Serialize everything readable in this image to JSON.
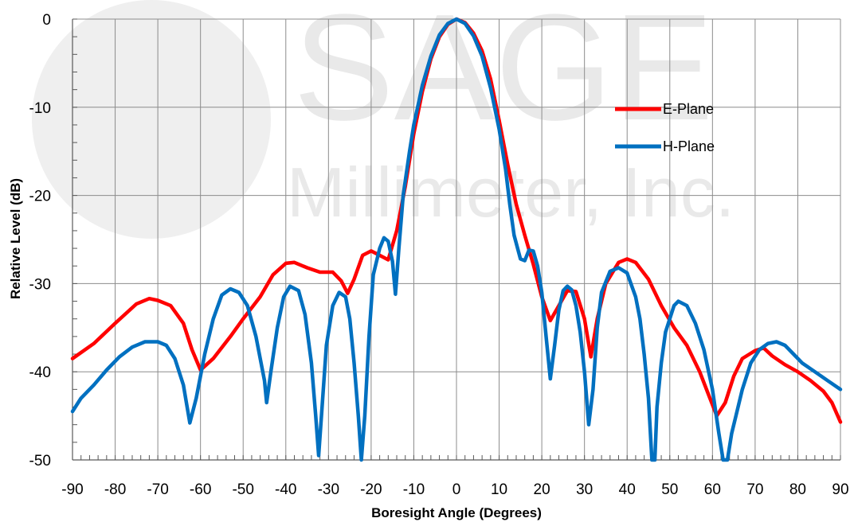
{
  "chart_data": {
    "type": "line",
    "xlabel": "Boresight Angle (Degrees)",
    "ylabel": "Relative Level (dB)",
    "xlim": [
      -90,
      90
    ],
    "ylim": [
      -50,
      0
    ],
    "x_ticks": [
      "-90",
      "-80",
      "-70",
      "-60",
      "-50",
      "-40",
      "-30",
      "-20",
      "-10",
      "0",
      "10",
      "20",
      "30",
      "40",
      "50",
      "60",
      "70",
      "80",
      "90"
    ],
    "y_ticks": [
      "0",
      "-10",
      "-20",
      "-30",
      "-40",
      "-50"
    ],
    "grid": true,
    "legend_position": "top-right",
    "watermark": {
      "line1": "SAGE",
      "line2": "Millimeter, Inc."
    },
    "series": [
      {
        "name": "E-Plane",
        "color": "#ff0000",
        "points": [
          [
            -90,
            -38.5
          ],
          [
            -85,
            -36.8
          ],
          [
            -80,
            -34.5
          ],
          [
            -75,
            -32.3
          ],
          [
            -72,
            -31.7
          ],
          [
            -70,
            -31.9
          ],
          [
            -67,
            -32.5
          ],
          [
            -64,
            -34.5
          ],
          [
            -62,
            -37.5
          ],
          [
            -60,
            -39.8
          ],
          [
            -57,
            -38.5
          ],
          [
            -53,
            -36
          ],
          [
            -50,
            -34
          ],
          [
            -46,
            -31.5
          ],
          [
            -43,
            -29
          ],
          [
            -40,
            -27.7
          ],
          [
            -38,
            -27.6
          ],
          [
            -35,
            -28.2
          ],
          [
            -32,
            -28.7
          ],
          [
            -29,
            -28.7
          ],
          [
            -27,
            -29.7
          ],
          [
            -25.5,
            -31.1
          ],
          [
            -24,
            -29.5
          ],
          [
            -22,
            -26.8
          ],
          [
            -20,
            -26.3
          ],
          [
            -18,
            -26.8
          ],
          [
            -16,
            -27.3
          ],
          [
            -14,
            -24
          ],
          [
            -12,
            -19
          ],
          [
            -10,
            -13
          ],
          [
            -8,
            -8.2
          ],
          [
            -6,
            -4.5
          ],
          [
            -4,
            -2
          ],
          [
            -2,
            -0.6
          ],
          [
            0,
            0
          ],
          [
            2,
            -0.4
          ],
          [
            4,
            -1.6
          ],
          [
            6,
            -3.6
          ],
          [
            8,
            -6.8
          ],
          [
            10,
            -11.5
          ],
          [
            12,
            -16.5
          ],
          [
            14,
            -21
          ],
          [
            16,
            -24.5
          ],
          [
            18,
            -27.8
          ],
          [
            20,
            -31.5
          ],
          [
            22,
            -34.2
          ],
          [
            24,
            -32.5
          ],
          [
            26,
            -30.8
          ],
          [
            28,
            -30.9
          ],
          [
            30,
            -34
          ],
          [
            31.5,
            -38.3
          ],
          [
            33,
            -34
          ],
          [
            35,
            -30
          ],
          [
            38,
            -27.6
          ],
          [
            40,
            -27.2
          ],
          [
            42,
            -27.6
          ],
          [
            45,
            -29.5
          ],
          [
            48,
            -32.5
          ],
          [
            51,
            -35
          ],
          [
            54,
            -37
          ],
          [
            57,
            -40
          ],
          [
            59,
            -42.5
          ],
          [
            61,
            -45
          ],
          [
            63,
            -43.5
          ],
          [
            65,
            -40.5
          ],
          [
            67,
            -38.5
          ],
          [
            70,
            -37.6
          ],
          [
            72,
            -37.3
          ],
          [
            74,
            -38.2
          ],
          [
            77,
            -39.2
          ],
          [
            80,
            -40
          ],
          [
            83,
            -41
          ],
          [
            86,
            -42.2
          ],
          [
            88,
            -43.5
          ],
          [
            90,
            -45.7
          ]
        ]
      },
      {
        "name": "H-Plane",
        "color": "#0070c0",
        "points": [
          [
            -90,
            -44.5
          ],
          [
            -88,
            -43
          ],
          [
            -85,
            -41.5
          ],
          [
            -82,
            -39.8
          ],
          [
            -79,
            -38.3
          ],
          [
            -76,
            -37.2
          ],
          [
            -73,
            -36.6
          ],
          [
            -70,
            -36.6
          ],
          [
            -68,
            -37
          ],
          [
            -66,
            -38.5
          ],
          [
            -64,
            -41.5
          ],
          [
            -62.5,
            -45.8
          ],
          [
            -61,
            -43
          ],
          [
            -59,
            -38
          ],
          [
            -57,
            -34
          ],
          [
            -55,
            -31.3
          ],
          [
            -53,
            -30.6
          ],
          [
            -51,
            -31
          ],
          [
            -49,
            -32.5
          ],
          [
            -47,
            -36
          ],
          [
            -45,
            -41
          ],
          [
            -44.5,
            -43.5
          ],
          [
            -43.5,
            -40
          ],
          [
            -42,
            -35
          ],
          [
            -40.5,
            -31.5
          ],
          [
            -39,
            -30.3
          ],
          [
            -37,
            -30.8
          ],
          [
            -35.5,
            -33.5
          ],
          [
            -34,
            -39
          ],
          [
            -33,
            -45
          ],
          [
            -32.3,
            -49.5
          ],
          [
            -31.5,
            -44
          ],
          [
            -30.5,
            -37
          ],
          [
            -29,
            -32.5
          ],
          [
            -27.5,
            -31
          ],
          [
            -26,
            -31.5
          ],
          [
            -25,
            -34
          ],
          [
            -24,
            -39
          ],
          [
            -23,
            -45
          ],
          [
            -22.3,
            -50
          ],
          [
            -21.5,
            -45
          ],
          [
            -20.5,
            -36
          ],
          [
            -19.5,
            -29
          ],
          [
            -18,
            -26
          ],
          [
            -17,
            -24.8
          ],
          [
            -16,
            -25.2
          ],
          [
            -15,
            -27.5
          ],
          [
            -14.3,
            -31.2
          ],
          [
            -13.5,
            -26
          ],
          [
            -12.5,
            -20
          ],
          [
            -11,
            -15
          ],
          [
            -10,
            -12
          ],
          [
            -8,
            -7.5
          ],
          [
            -6,
            -4.2
          ],
          [
            -4,
            -1.8
          ],
          [
            -2,
            -0.5
          ],
          [
            0,
            0
          ],
          [
            2,
            -0.5
          ],
          [
            4,
            -1.9
          ],
          [
            6,
            -4.2
          ],
          [
            8,
            -7.8
          ],
          [
            10,
            -12.5
          ],
          [
            11.5,
            -17
          ],
          [
            12.5,
            -21
          ],
          [
            13.5,
            -24.5
          ],
          [
            15,
            -27.2
          ],
          [
            16,
            -27.4
          ],
          [
            17,
            -26.2
          ],
          [
            18,
            -26.3
          ],
          [
            19,
            -28
          ],
          [
            20,
            -31
          ],
          [
            21,
            -36
          ],
          [
            22,
            -40.8
          ],
          [
            23,
            -37
          ],
          [
            24,
            -33
          ],
          [
            25,
            -30.8
          ],
          [
            26,
            -30.3
          ],
          [
            27,
            -30.7
          ],
          [
            28,
            -32.5
          ],
          [
            29,
            -35.5
          ],
          [
            30,
            -40
          ],
          [
            31,
            -46
          ],
          [
            32,
            -42
          ],
          [
            33,
            -35
          ],
          [
            34,
            -31
          ],
          [
            36,
            -28.6
          ],
          [
            38,
            -28.2
          ],
          [
            40,
            -28.8
          ],
          [
            42,
            -31.5
          ],
          [
            43,
            -34
          ],
          [
            44,
            -38
          ],
          [
            45,
            -43
          ],
          [
            45.8,
            -50
          ],
          [
            46.5,
            -50
          ],
          [
            47,
            -44
          ],
          [
            48,
            -39
          ],
          [
            49,
            -35.5
          ],
          [
            51,
            -32.5
          ],
          [
            52,
            -32
          ],
          [
            54,
            -32.5
          ],
          [
            56,
            -34.5
          ],
          [
            58,
            -37.5
          ],
          [
            60,
            -42
          ],
          [
            61.5,
            -47
          ],
          [
            62.5,
            -50
          ],
          [
            63.5,
            -50
          ],
          [
            64.5,
            -47
          ],
          [
            65.5,
            -45
          ],
          [
            67,
            -42
          ],
          [
            69,
            -39
          ],
          [
            71,
            -37.5
          ],
          [
            73,
            -36.8
          ],
          [
            75,
            -36.6
          ],
          [
            77,
            -37
          ],
          [
            79,
            -38
          ],
          [
            81,
            -39
          ],
          [
            84,
            -40
          ],
          [
            87,
            -41
          ],
          [
            90,
            -42
          ]
        ]
      }
    ]
  }
}
